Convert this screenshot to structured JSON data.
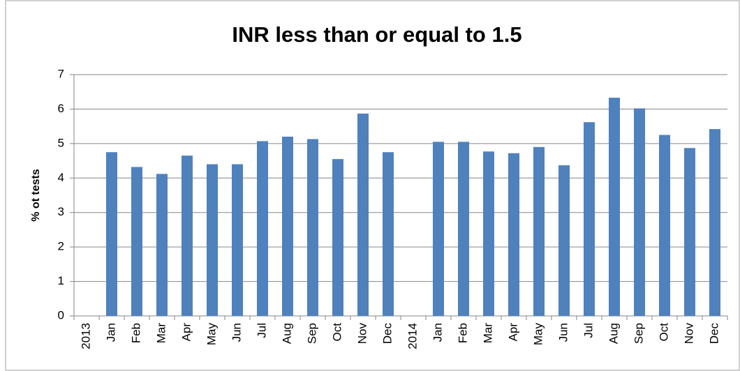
{
  "chart_data": {
    "type": "bar",
    "title": "INR less than or equal to 1.5",
    "y_label": "% ot tests",
    "categories": [
      "2013",
      "Jan",
      "Feb",
      "Mar",
      "Apr",
      "May",
      "Jun",
      "Jul",
      "Aug",
      "Sep",
      "Oct",
      "Nov",
      "Dec",
      "2014",
      "Jan",
      "Feb",
      "Mar",
      "Apr",
      "May",
      "Jun",
      "Jul",
      "Aug",
      "Sep",
      "Oct",
      "Nov",
      "Dec"
    ],
    "values": [
      null,
      4.75,
      4.32,
      4.12,
      4.65,
      4.4,
      4.4,
      5.07,
      5.2,
      5.13,
      4.55,
      5.87,
      4.75,
      null,
      5.05,
      5.05,
      4.77,
      4.72,
      4.9,
      4.37,
      5.62,
      6.33,
      6.02,
      5.25,
      4.87,
      5.42
    ],
    "color": "#4f81bd",
    "ylim": [
      0,
      7
    ],
    "yticks": [
      0,
      1,
      2,
      3,
      4,
      5,
      6,
      7
    ],
    "grid": true
  }
}
